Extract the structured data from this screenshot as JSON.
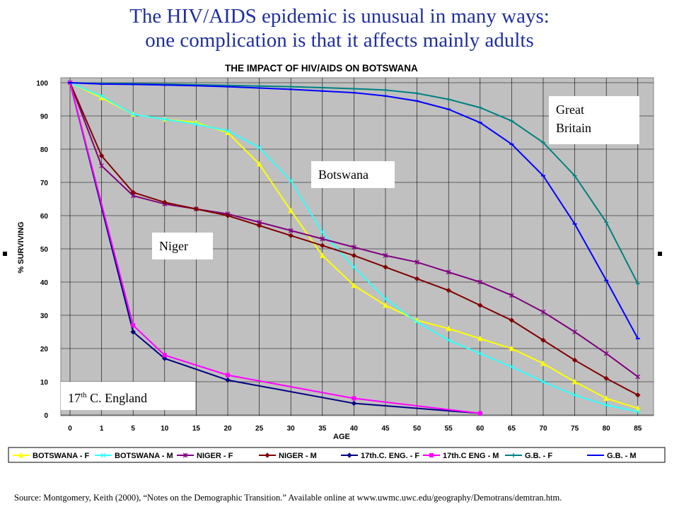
{
  "slide": {
    "title_line1": "The HIV/AIDS epidemic is unusual in many ways:",
    "title_line2": "one complication is that it affects mainly adults",
    "source": "Source:    Montgomery, Keith (2000), “Notes on the Demographic Transition.”  Available online at www.uwmc.uwc.edu/geography/Demotrans/demtran.htm."
  },
  "callouts": {
    "great_britain": [
      "Great",
      "Britain"
    ],
    "botswana": "Botswana",
    "niger": "Niger",
    "england_prefix": "17",
    "england_sup": "th",
    "england_suffix": " C. England"
  },
  "chart_data": {
    "type": "line",
    "title": "THE IMPACT OF HIV/AIDS ON BOTSWANA",
    "xlabel": "AGE",
    "ylabel": "% SURVIVING",
    "x": [
      0,
      1,
      5,
      10,
      15,
      20,
      25,
      30,
      35,
      40,
      45,
      50,
      55,
      60,
      65,
      70,
      75,
      80,
      85
    ],
    "x_tick_labels": [
      "0",
      "1",
      "5",
      "10",
      "15",
      "20",
      "25",
      "30",
      "35",
      "40",
      "45",
      "50",
      "55",
      "60",
      "65",
      "70",
      "75",
      "80",
      "85"
    ],
    "y_ticks": [
      0,
      10,
      20,
      30,
      40,
      50,
      60,
      70,
      80,
      90,
      100
    ],
    "ylim": [
      0,
      100
    ],
    "grid": true,
    "legend_position": "bottom",
    "series": [
      {
        "name": "BOTSWANA - F",
        "color": "#ffff00",
        "marker": "triangle",
        "values": [
          100,
          95.5,
          90.5,
          89,
          88,
          85,
          75.5,
          61.5,
          48,
          39,
          33,
          28.5,
          26,
          23,
          20,
          15.5,
          10,
          5,
          2
        ]
      },
      {
        "name": "BOTSWANA - M",
        "color": "#33ffff",
        "marker": "x",
        "values": [
          100,
          96,
          90.5,
          89,
          87.5,
          85.5,
          80.5,
          70.5,
          55,
          44.5,
          35,
          28,
          22.5,
          18.5,
          14.5,
          10,
          6,
          3,
          1
        ]
      },
      {
        "name": "NIGER - F",
        "color": "#800080",
        "marker": "star",
        "values": [
          100,
          75,
          66,
          63.5,
          62,
          60.5,
          58,
          55.5,
          53,
          50.5,
          48,
          46,
          43,
          40,
          36,
          31,
          25,
          18.5,
          11.5
        ]
      },
      {
        "name": "NIGER - M",
        "color": "#800000",
        "marker": "diamond",
        "values": [
          100,
          78,
          67,
          64,
          62,
          60,
          57,
          54,
          51,
          48,
          44.5,
          41,
          37.5,
          33,
          28.5,
          22.5,
          16.5,
          11,
          6
        ]
      },
      {
        "name": "17th.C. ENG. - F",
        "color": "#000080",
        "marker": "diamond",
        "points": [
          [
            0,
            100
          ],
          [
            5,
            25
          ],
          [
            10,
            17
          ],
          [
            20,
            10.5
          ],
          [
            40,
            3.5
          ],
          [
            60,
            0.5
          ]
        ]
      },
      {
        "name": "17th.C ENG - M",
        "color": "#ff00ff",
        "marker": "square",
        "points": [
          [
            0,
            100
          ],
          [
            5,
            27
          ],
          [
            10,
            18
          ],
          [
            20,
            12
          ],
          [
            40,
            5
          ],
          [
            60,
            0.5
          ]
        ]
      },
      {
        "name": "G.B. - F",
        "color": "#008080",
        "marker": "plus",
        "values": [
          100,
          99.8,
          99.7,
          99.6,
          99.4,
          99.2,
          99,
          98.8,
          98.5,
          98.2,
          97.8,
          96.8,
          95,
          92.5,
          88.5,
          82,
          72,
          58,
          39.5
        ]
      },
      {
        "name": "G.B. - M",
        "color": "#0000ff",
        "marker": "dash",
        "values": [
          100,
          99.6,
          99.5,
          99.3,
          99.1,
          98.8,
          98.4,
          98,
          97.5,
          97,
          96,
          94.5,
          92,
          88,
          81.5,
          72,
          57.5,
          40.5,
          23
        ]
      }
    ]
  }
}
